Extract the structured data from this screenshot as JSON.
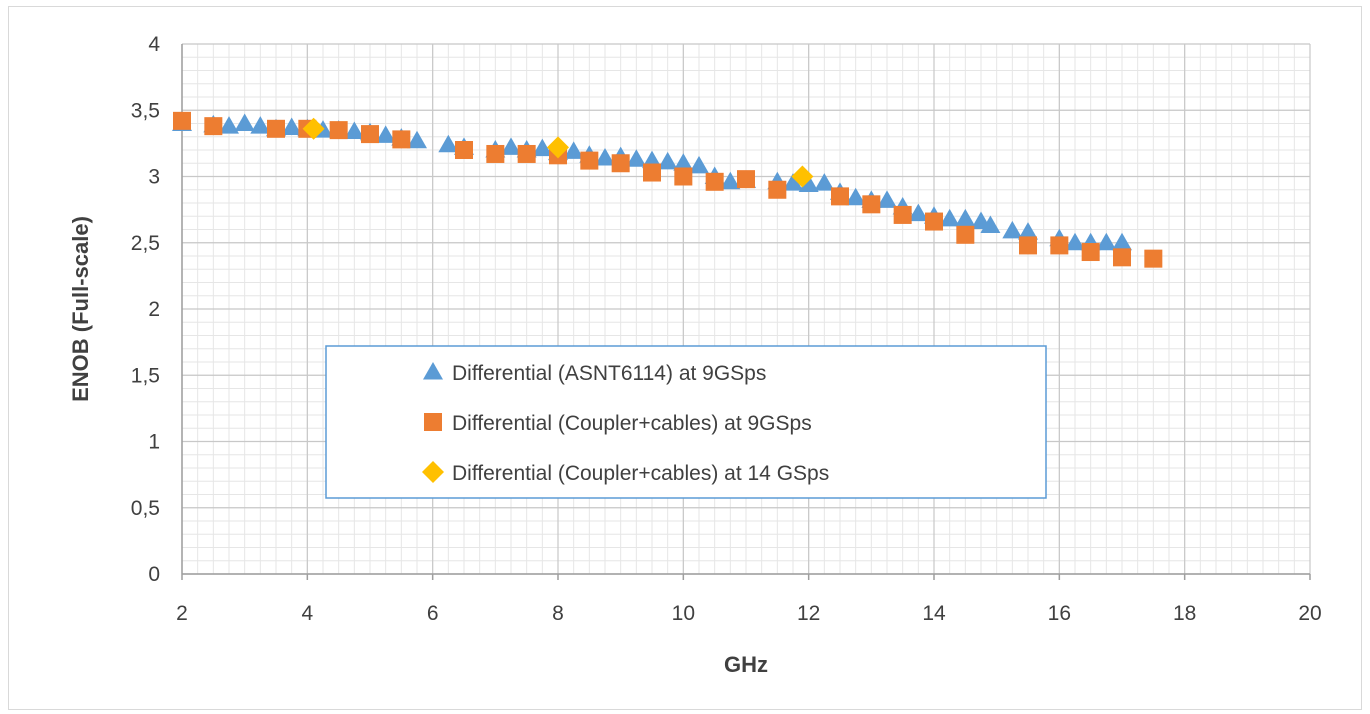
{
  "chart_data": {
    "type": "scatter",
    "title": "",
    "xlabel": "GHz",
    "ylabel": "ENOB (Full-scale)",
    "xlim": [
      2,
      20
    ],
    "ylim": [
      0,
      4
    ],
    "xticks": [
      "2",
      "4",
      "6",
      "8",
      "10",
      "12",
      "14",
      "16",
      "18",
      "20"
    ],
    "yticks": [
      "0",
      "0,5",
      "1",
      "1,5",
      "2",
      "2,5",
      "3",
      "3,5",
      "4"
    ],
    "grid": true,
    "legend_position": "center",
    "series": [
      {
        "name": "Differential (ASNT6114) at 9GSps",
        "marker": "triangle",
        "color": "#5b9bd5",
        "x": [
          2.0,
          2.5,
          2.75,
          3.0,
          3.25,
          3.5,
          3.75,
          4.0,
          4.25,
          4.5,
          4.75,
          5.0,
          5.25,
          5.5,
          5.75,
          6.25,
          6.5,
          7.0,
          7.25,
          7.5,
          7.75,
          8.0,
          8.25,
          8.5,
          8.75,
          9.0,
          9.25,
          9.5,
          9.75,
          10.0,
          10.25,
          10.5,
          10.75,
          11.0,
          11.5,
          11.75,
          12.0,
          12.25,
          12.5,
          12.75,
          13.0,
          13.25,
          13.5,
          13.75,
          14.0,
          14.25,
          14.5,
          14.75,
          14.9,
          15.25,
          15.5,
          16.0,
          16.25,
          16.5,
          16.75,
          17.0
        ],
        "y": [
          3.4,
          3.39,
          3.38,
          3.4,
          3.38,
          3.36,
          3.37,
          3.36,
          3.35,
          3.35,
          3.34,
          3.33,
          3.31,
          3.29,
          3.27,
          3.24,
          3.22,
          3.2,
          3.22,
          3.2,
          3.21,
          3.18,
          3.19,
          3.16,
          3.14,
          3.15,
          3.13,
          3.12,
          3.11,
          3.1,
          3.08,
          3.0,
          2.96,
          2.97,
          2.96,
          2.95,
          2.94,
          2.95,
          2.88,
          2.84,
          2.82,
          2.82,
          2.77,
          2.72,
          2.7,
          2.68,
          2.68,
          2.66,
          2.63,
          2.59,
          2.58,
          2.53,
          2.5,
          2.5,
          2.5,
          2.5
        ]
      },
      {
        "name": "Differential (Coupler+cables) at 9GSps",
        "marker": "square",
        "color": "#ed7d31",
        "x": [
          2.0,
          2.5,
          3.5,
          4.0,
          4.5,
          5.0,
          5.5,
          6.5,
          7.0,
          7.5,
          8.0,
          8.5,
          9.0,
          9.5,
          10.0,
          10.5,
          11.0,
          11.5,
          12.5,
          13.0,
          13.5,
          14.0,
          14.5,
          15.5,
          16.0,
          16.5,
          17.0,
          17.5
        ],
        "y": [
          3.42,
          3.38,
          3.36,
          3.36,
          3.35,
          3.32,
          3.28,
          3.2,
          3.17,
          3.17,
          3.16,
          3.12,
          3.1,
          3.03,
          3.0,
          2.96,
          2.98,
          2.9,
          2.85,
          2.79,
          2.71,
          2.66,
          2.56,
          2.48,
          2.48,
          2.43,
          2.39,
          2.38
        ]
      },
      {
        "name": "Differential (Coupler+cables) at 14 GSps",
        "marker": "diamond",
        "color": "#ffc000",
        "x": [
          4.1,
          8.0,
          11.9
        ],
        "y": [
          3.36,
          3.22,
          3.0
        ]
      }
    ]
  }
}
